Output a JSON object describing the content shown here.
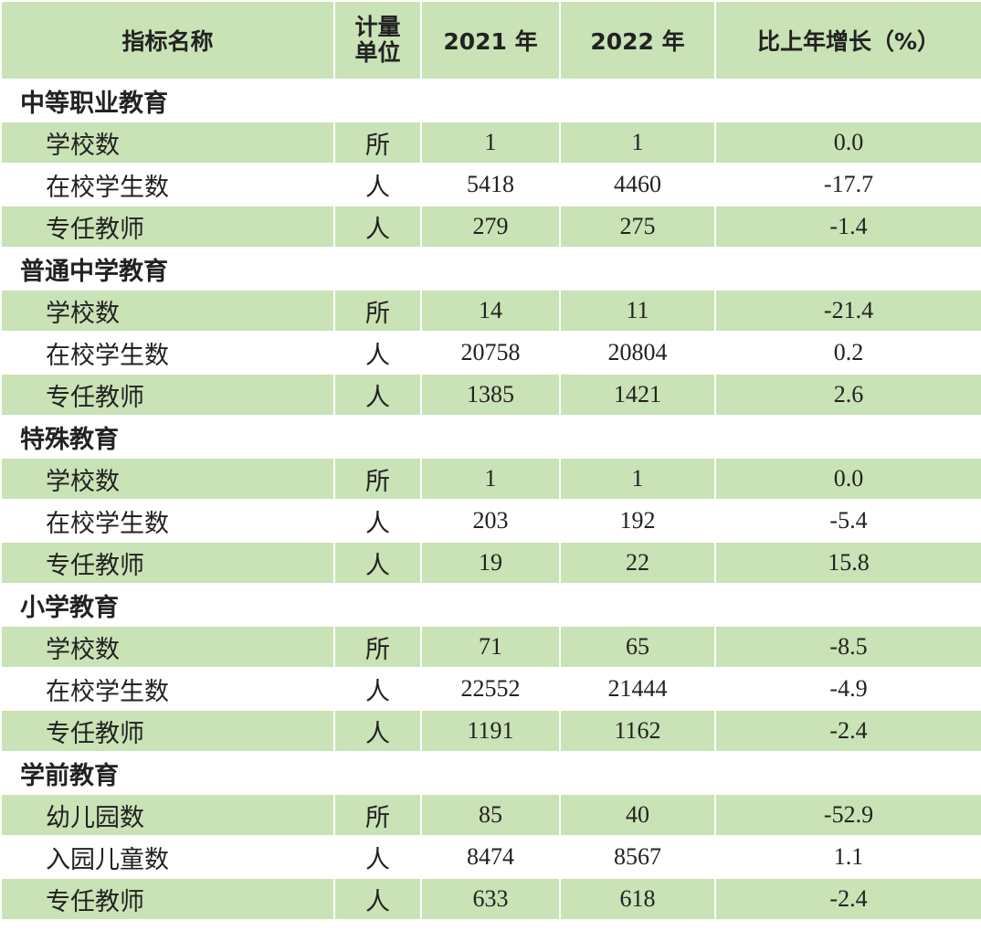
{
  "header": [
    "指标名称",
    "计量单位",
    "2021 年",
    "2022 年",
    "比上年增长（%）"
  ],
  "sections": [
    {
      "title": "中等职业教育",
      "rows": [
        [
          "学校数",
          "所",
          "1",
          "1",
          "0.0"
        ],
        [
          "在校学生数",
          "人",
          "5418",
          "4460",
          "-17.7"
        ],
        [
          "专任教师",
          "人",
          "279",
          "275",
          "-1.4"
        ]
      ]
    },
    {
      "title": "普通中学教育",
      "rows": [
        [
          "学校数",
          "所",
          "14",
          "11",
          "-21.4"
        ],
        [
          "在校学生数",
          "人",
          "20758",
          "20804",
          "0.2"
        ],
        [
          "专任教师",
          "人",
          "1385",
          "1421",
          "2.6"
        ]
      ]
    },
    {
      "title": "特殊教育",
      "rows": [
        [
          "学校数",
          "所",
          "1",
          "1",
          "0.0"
        ],
        [
          "在校学生数",
          "人",
          "203",
          "192",
          "-5.4"
        ],
        [
          "专任教师",
          "人",
          "19",
          "22",
          "15.8"
        ]
      ]
    },
    {
      "title": "小学教育",
      "rows": [
        [
          "学校数",
          "所",
          "71",
          "65",
          "-8.5"
        ],
        [
          "在校学生数",
          "人",
          "22552",
          "21444",
          "-4.9"
        ],
        [
          "专任教师",
          "人",
          "1191",
          "1162",
          "-2.4"
        ]
      ]
    },
    {
      "title": "学前教育",
      "rows": [
        [
          "幼儿园数",
          "所",
          "85",
          "40",
          "-52.9"
        ],
        [
          "入园儿童数",
          "人",
          "8474",
          "8567",
          "1.1"
        ],
        [
          "专任教师",
          "人",
          "633",
          "618",
          "-2.4"
        ]
      ]
    }
  ]
}
